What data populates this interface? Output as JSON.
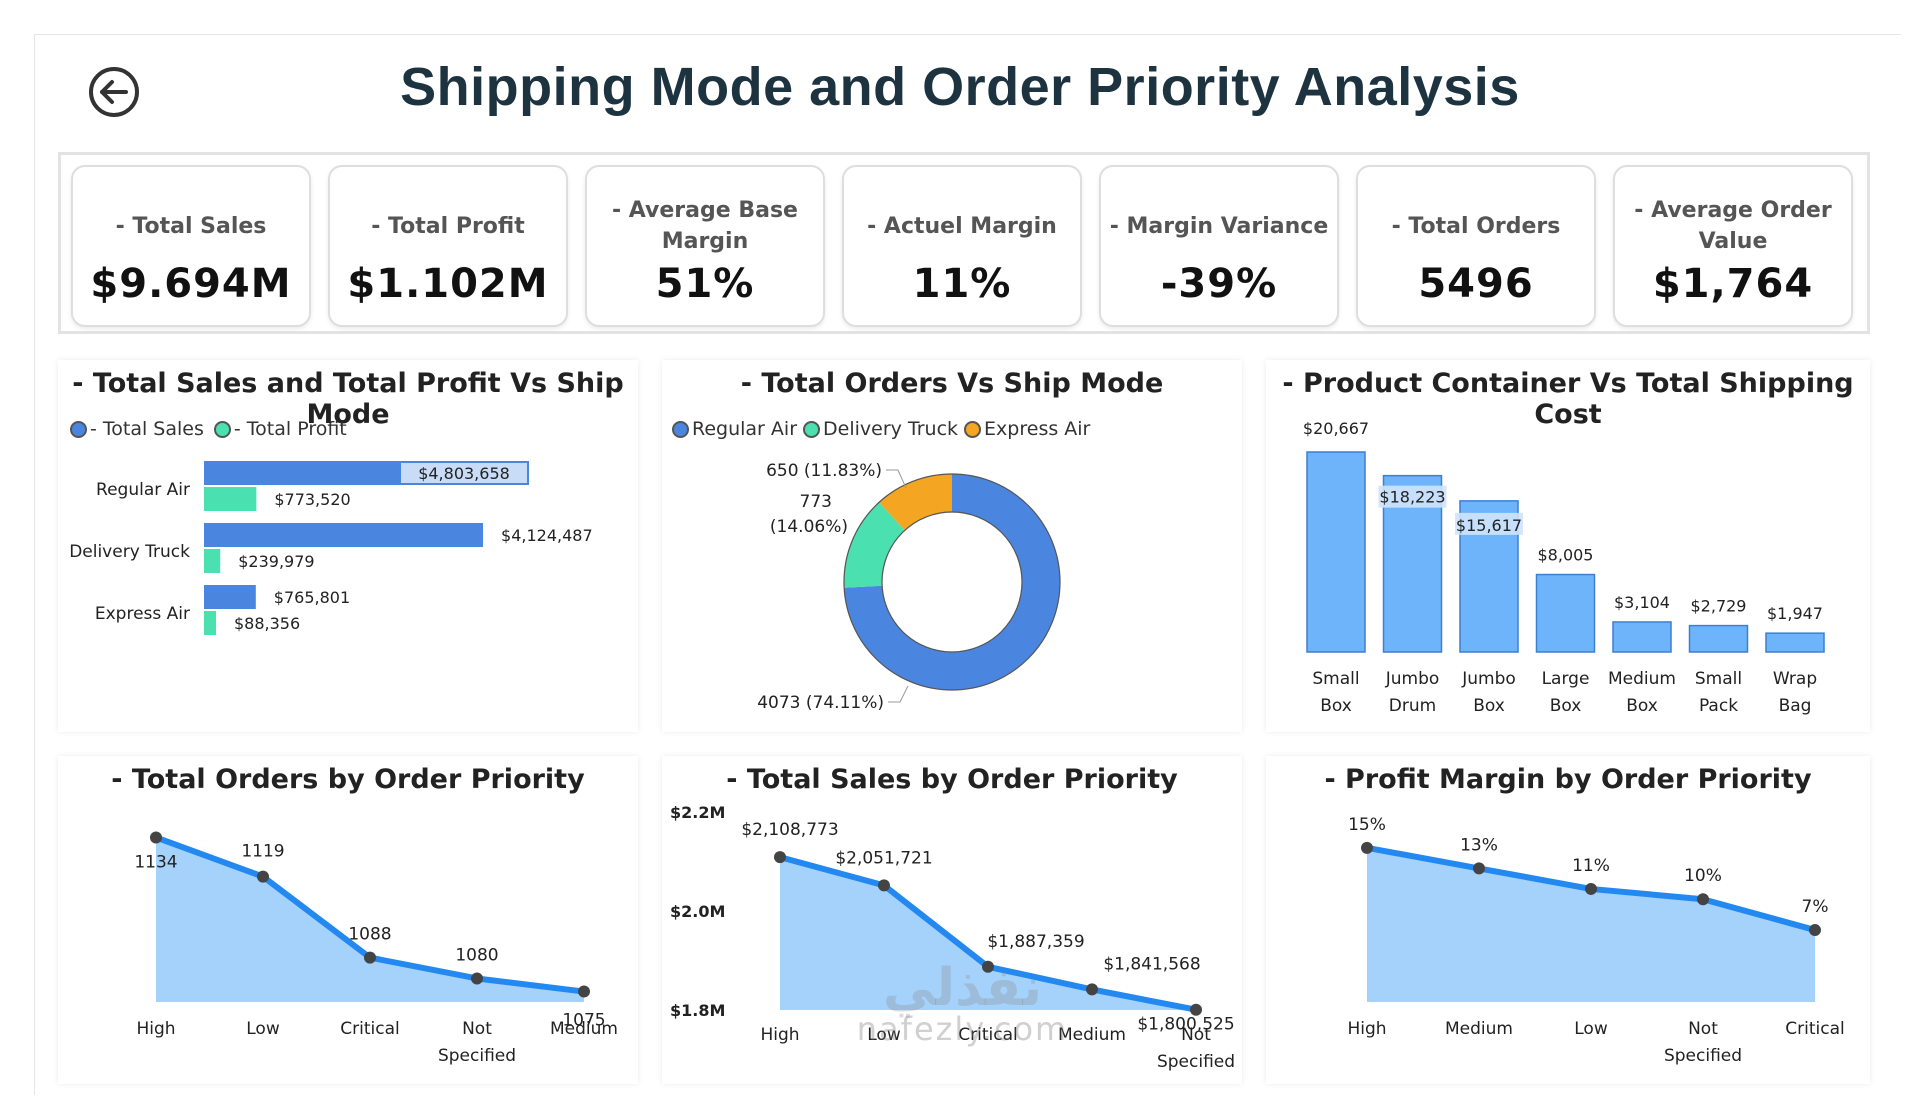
{
  "title": "Shipping Mode and Order Priority Analysis",
  "kpis": [
    {
      "label": "- Total Sales",
      "value": "$9.694M"
    },
    {
      "label": "- Total Profit",
      "value": "$1.102M"
    },
    {
      "label": "- Average Base Margin",
      "value": "51%"
    },
    {
      "label": "- Actuel Margin",
      "value": "11%"
    },
    {
      "label": "- Margin Variance",
      "value": "-39%"
    },
    {
      "label": "- Total Orders",
      "value": "5496"
    },
    {
      "label": "- Average Order Value",
      "value": "$1,764"
    }
  ],
  "watermark": {
    "arabic": "نفذلي",
    "latin": "nafezly.com"
  },
  "colors": {
    "blue": "#4a86e0",
    "teal": "#4be0b0",
    "orange": "#f4a521",
    "lightblue": "#6db4fa",
    "area": "#9fd0fb",
    "line": "#2389f0"
  },
  "chart_data": [
    {
      "id": "sales-profit-ship",
      "type": "bar",
      "orientation": "horizontal",
      "title": "- Total Sales and Total Profit Vs Ship Mode",
      "categories": [
        "Regular Air",
        "Delivery Truck",
        "Express Air"
      ],
      "series": [
        {
          "name": "- Total Sales",
          "values": [
            4803658,
            4124487,
            765801
          ],
          "labels": [
            "$4,803,658",
            "$4,124,487",
            "$765,801"
          ]
        },
        {
          "name": "- Total Profit",
          "values": [
            773520,
            239979,
            88356
          ],
          "labels": [
            "$773,520",
            "$239,979",
            "$88,356"
          ]
        }
      ],
      "legend": "top-left",
      "grid": false
    },
    {
      "id": "orders-ship",
      "type": "pie",
      "title": "- Total Orders Vs Ship Mode",
      "slices": [
        {
          "name": "Regular Air",
          "value": 4073,
          "label": "4073 (74.11%)"
        },
        {
          "name": "Delivery Truck",
          "value": 773,
          "label_lines": [
            "773",
            "(14.06%)"
          ]
        },
        {
          "name": "Express Air",
          "value": 650,
          "label": "650 (11.83%)"
        }
      ],
      "legend": "top-left"
    },
    {
      "id": "container-cost",
      "type": "bar",
      "title": "- Product Container Vs Total Shipping Cost",
      "categories": [
        [
          "Small",
          "Box"
        ],
        [
          "Jumbo",
          "Drum"
        ],
        [
          "Jumbo",
          "Box"
        ],
        [
          "Large",
          "Box"
        ],
        [
          "Medium",
          "Box"
        ],
        [
          "Small",
          "Pack"
        ],
        [
          "Wrap",
          "Bag"
        ]
      ],
      "values": [
        20667,
        18223,
        15617,
        8005,
        3104,
        2729,
        1947
      ],
      "labels": [
        "$20,667",
        "$18,223",
        "$15,617",
        "$8,005",
        "$3,104",
        "$2,729",
        "$1,947"
      ],
      "ylim": [
        0,
        20667
      ]
    },
    {
      "id": "orders-priority",
      "type": "area",
      "title": "- Total Orders by Order Priority",
      "categories": [
        [
          "High"
        ],
        [
          "Low"
        ],
        [
          "Critical"
        ],
        [
          "Not",
          "Specified"
        ],
        [
          "Medium"
        ]
      ],
      "values": [
        1134,
        1119,
        1088,
        1080,
        1075
      ],
      "labels": [
        "1134",
        "1119",
        "1088",
        "1080",
        "1075"
      ],
      "ylim": [
        1071,
        1138
      ]
    },
    {
      "id": "sales-priority",
      "type": "area",
      "title": "- Total Sales by Order Priority",
      "categories": [
        [
          "High"
        ],
        [
          "Low"
        ],
        [
          "Critical"
        ],
        [
          "Medium"
        ],
        [
          "Not",
          "Specified"
        ]
      ],
      "values": [
        2108773,
        2051721,
        1887359,
        1841568,
        1800525
      ],
      "labels": [
        "$2,108,773",
        "$2,051,721",
        "$1,887,359",
        "$1,841,568",
        "$1,800,525"
      ],
      "yticks": [
        {
          "value": 2200000,
          "label": "$2.2M"
        },
        {
          "value": 2000000,
          "label": "$2.0M"
        },
        {
          "value": 1800000,
          "label": "$1.8M"
        }
      ],
      "ylim": [
        1800000,
        2200000
      ]
    },
    {
      "id": "margin-priority",
      "type": "area",
      "title": "- Profit Margin by Order Priority",
      "categories": [
        [
          "High"
        ],
        [
          "Medium"
        ],
        [
          "Low"
        ],
        [
          "Not",
          "Specified"
        ],
        [
          "Critical"
        ]
      ],
      "values": [
        15,
        13,
        11,
        10,
        7
      ],
      "labels": [
        "15%",
        "13%",
        "11%",
        "10%",
        "7%"
      ],
      "ylim": [
        0,
        18
      ]
    }
  ]
}
